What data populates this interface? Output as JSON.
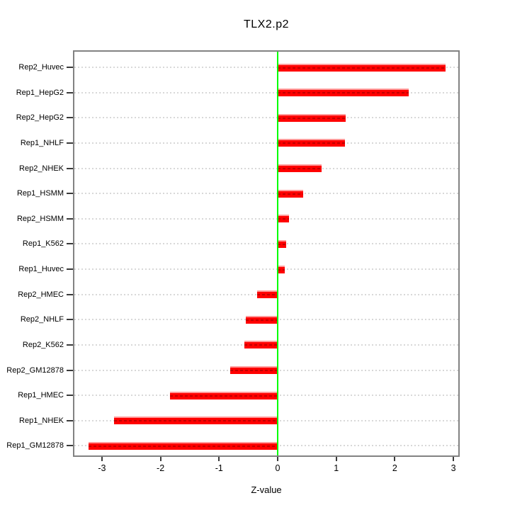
{
  "chart_data": {
    "type": "bar",
    "orientation": "horizontal",
    "title": "TLX2.p2",
    "xlabel": "Z-value",
    "ylabel": "",
    "categories": [
      "Rep2_Huvec",
      "Rep1_HepG2",
      "Rep2_HepG2",
      "Rep1_NHLF",
      "Rep2_NHEK",
      "Rep1_HSMM",
      "Rep2_HSMM",
      "Rep1_K562",
      "Rep1_Huvec",
      "Rep2_HMEC",
      "Rep2_NHLF",
      "Rep2_K562",
      "Rep2_GM12878",
      "Rep1_HMEC",
      "Rep1_NHEK",
      "Rep1_GM12878"
    ],
    "values": [
      2.87,
      2.24,
      1.16,
      1.15,
      0.75,
      0.43,
      0.19,
      0.14,
      0.12,
      -0.35,
      -0.55,
      -0.57,
      -0.81,
      -1.84,
      -2.79,
      -3.23
    ],
    "xticks": [
      -3,
      -2,
      -1,
      0,
      1,
      2,
      3
    ],
    "xlim": [
      -3.47,
      3.13
    ],
    "zero_line_at": 0,
    "grid": "dotted horizontal guide per category",
    "legend": null,
    "colors": {
      "bar_fill": "#FF0000",
      "bar_highlight": "#FF9A9A",
      "bar_dash": "#C00000",
      "zero_line": "#00FF00",
      "grid_dots": "#D8D8D8",
      "axis_box": "#828282",
      "text": "#000000",
      "background": "#FFFFFF"
    }
  }
}
